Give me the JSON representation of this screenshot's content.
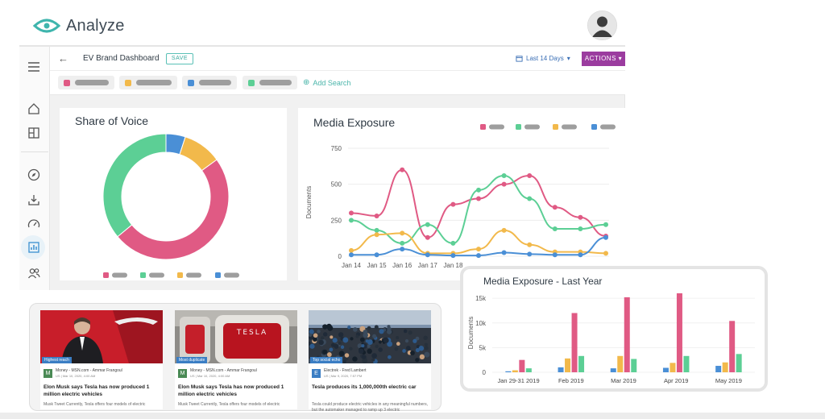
{
  "header": {
    "app_name": "Analyze",
    "logo_icon": "eye-logo-icon",
    "avatar_icon": "user-avatar-icon"
  },
  "toolbar": {
    "back_icon": "arrow-left-icon",
    "title": "EV Brand Dashboard",
    "save_label": "SAVE",
    "date_range": "Last 14 Days",
    "actions_label": "ACTIONS"
  },
  "searches": {
    "chips": [
      {
        "color": "#e05a84"
      },
      {
        "color": "#f2b94b"
      },
      {
        "color": "#4a8fd6"
      },
      {
        "color": "#5ccf95"
      }
    ],
    "add_label": "Add Search"
  },
  "sidebar": {
    "items": [
      "menu-icon",
      "home-icon",
      "dashboard-icon",
      "compass-icon",
      "download-icon",
      "gauge-icon",
      "analytics-icon",
      "people-icon"
    ],
    "active": "analytics-icon"
  },
  "colors": {
    "pink": "#e05a84",
    "green": "#5ccf95",
    "yellow": "#f2b94b",
    "blue": "#4a8fd6",
    "accent": "#9b3c9f",
    "teal": "#4ab5aa"
  },
  "share_of_voice": {
    "title": "Share of Voice",
    "chart_data": {
      "type": "pie",
      "donut": true,
      "slices": [
        {
          "color": "#4a8fd6",
          "value": 5
        },
        {
          "color": "#f2b94b",
          "value": 10
        },
        {
          "color": "#e05a84",
          "value": 49
        },
        {
          "color": "#5ccf95",
          "value": 36
        }
      ]
    }
  },
  "media_exposure": {
    "title": "Media Exposure",
    "chart_data": {
      "type": "line",
      "ylabel": "Documents",
      "ylim": [
        0,
        750
      ],
      "yticks": [
        0,
        250,
        500,
        750
      ],
      "x": [
        "Jan 14",
        "Jan 15",
        "Jan 16",
        "Jan 17",
        "Jan 18",
        "Jan 19",
        "Jan 20",
        "Jan 21",
        "Jan 22",
        "Jan 23",
        "Jan 24"
      ],
      "xtick_labels": [
        "Jan 14",
        "Jan 15",
        "Jan 16",
        "Jan 17",
        "Jan 18"
      ],
      "series": [
        {
          "color": "#e05a84",
          "values": [
            300,
            280,
            600,
            130,
            360,
            400,
            500,
            560,
            340,
            270,
            140
          ]
        },
        {
          "color": "#5ccf95",
          "values": [
            250,
            180,
            90,
            220,
            90,
            460,
            560,
            400,
            190,
            190,
            220
          ]
        },
        {
          "color": "#f2b94b",
          "values": [
            40,
            150,
            160,
            20,
            20,
            50,
            180,
            80,
            30,
            30,
            20
          ]
        },
        {
          "color": "#4a8fd6",
          "values": [
            10,
            10,
            50,
            10,
            5,
            5,
            25,
            15,
            10,
            10,
            130
          ]
        }
      ]
    }
  },
  "news": [
    {
      "tag": "Highest reach",
      "source_letter": "M",
      "source_color": "#4a8a55",
      "source": "Money - MSN.com - Ammar Frangoul",
      "date": "US | Mar 10, 2020, 4:00 AM",
      "headline": "Elon Musk says Tesla has now produced 1 million electric vehicles",
      "snippet": "Musk Tweet Currently, Tesla offers four models of electric"
    },
    {
      "tag": "Most duplicate",
      "source_letter": "M",
      "source_color": "#4a8a55",
      "source": "Money - MSN.com - Ammar Frangoul",
      "date": "US | Mar 10, 2020, 4:00 AM",
      "headline": "Elon Musk says Tesla has now produced 1 million electric vehicles",
      "snippet": "Musk Tweet Currently, Tesla offers four models of electric"
    },
    {
      "tag": "Top social echo",
      "source_letter": "E",
      "source_color": "#3b7ec4",
      "source": "Electrek - Fred Lambert",
      "date": "US | Mar 9, 2020, 7:57 PM",
      "headline": "Tesla produces its 1,000,000th electric car",
      "snippet": "Tesla could produce electric vehicles in any meaningful numbers, but the automaker managed to ramp up 3 electric"
    }
  ],
  "last_year": {
    "title": "Media Exposure - Last Year",
    "chart_data": {
      "type": "bar",
      "ylabel": "Documents",
      "ylim": [
        0,
        16000
      ],
      "yticks": [
        "0",
        "5k",
        "10k",
        "15k"
      ],
      "categories": [
        "Jan 29-31 2019",
        "Feb 2019",
        "Mar 2019",
        "Apr 2019",
        "May 2019"
      ],
      "series": [
        {
          "color": "#4a8fd6",
          "values": [
            200,
            1000,
            800,
            900,
            1300
          ]
        },
        {
          "color": "#f2b94b",
          "values": [
            400,
            2800,
            3300,
            1900,
            2000
          ]
        },
        {
          "color": "#e05a84",
          "values": [
            2500,
            12000,
            15200,
            16000,
            10400
          ]
        },
        {
          "color": "#5ccf95",
          "values": [
            800,
            3300,
            2700,
            3300,
            3700
          ]
        }
      ]
    }
  }
}
